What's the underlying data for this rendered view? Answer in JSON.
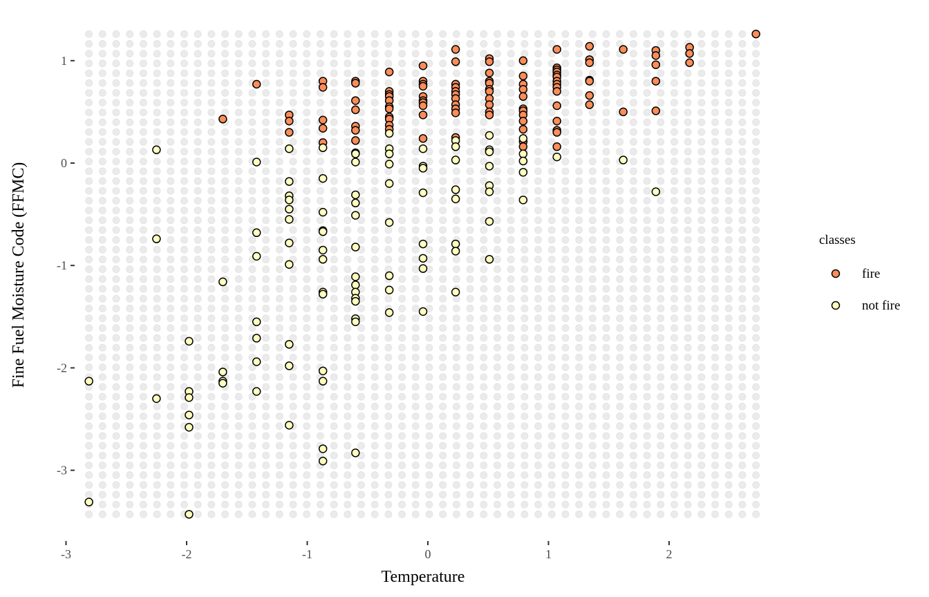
{
  "chart_data": {
    "type": "scatter",
    "title": "",
    "xlabel": "Temperature",
    "ylabel": "Fine Fuel Moisture Code (FFMC)",
    "xlim": [
      -3,
      2.8
    ],
    "ylim": [
      -3.5,
      1.3
    ],
    "xticks": [
      -3,
      -2,
      -1,
      0,
      1,
      2
    ],
    "xtick_labels": [
      "-3",
      "-2",
      "-1",
      "0",
      "1",
      "2"
    ],
    "yticks": [
      1,
      0,
      -1,
      -2,
      -3
    ],
    "ytick_labels": [
      "1",
      "0",
      "-1",
      "-2",
      "-3"
    ],
    "background_grid": {
      "xrange": [
        -2.81,
        2.72
      ],
      "yrange": [
        -3.43,
        1.26
      ],
      "n": 50
    },
    "legend": {
      "title": "classes",
      "position": "right"
    },
    "series": [
      {
        "name": "fire",
        "color": "#FC8D59",
        "points": [
          [
            -1.7,
            0.43
          ],
          [
            -1.42,
            0.77
          ],
          [
            -1.15,
            0.47
          ],
          [
            -1.15,
            0.41
          ],
          [
            -1.15,
            0.3
          ],
          [
            -0.87,
            0.8
          ],
          [
            -0.87,
            0.74
          ],
          [
            -0.87,
            0.42
          ],
          [
            -0.87,
            0.34
          ],
          [
            -0.87,
            0.2
          ],
          [
            -0.6,
            0.8
          ],
          [
            -0.6,
            0.78
          ],
          [
            -0.6,
            0.61
          ],
          [
            -0.6,
            0.52
          ],
          [
            -0.6,
            0.36
          ],
          [
            -0.6,
            0.32
          ],
          [
            -0.6,
            0.22
          ],
          [
            -0.32,
            0.89
          ],
          [
            -0.32,
            0.7
          ],
          [
            -0.32,
            0.67
          ],
          [
            -0.32,
            0.65
          ],
          [
            -0.32,
            0.61
          ],
          [
            -0.32,
            0.55
          ],
          [
            -0.32,
            0.53
          ],
          [
            -0.32,
            0.45
          ],
          [
            -0.32,
            0.43
          ],
          [
            -0.32,
            0.37
          ],
          [
            -0.32,
            0.33
          ],
          [
            -0.04,
            0.95
          ],
          [
            -0.04,
            0.8
          ],
          [
            -0.04,
            0.77
          ],
          [
            -0.04,
            0.75
          ],
          [
            -0.04,
            0.65
          ],
          [
            -0.04,
            0.61
          ],
          [
            -0.04,
            0.59
          ],
          [
            -0.04,
            0.56
          ],
          [
            -0.04,
            0.47
          ],
          [
            -0.04,
            0.24
          ],
          [
            0.23,
            1.11
          ],
          [
            0.23,
            0.99
          ],
          [
            0.23,
            0.77
          ],
          [
            0.23,
            0.74
          ],
          [
            0.23,
            0.7
          ],
          [
            0.23,
            0.67
          ],
          [
            0.23,
            0.63
          ],
          [
            0.23,
            0.57
          ],
          [
            0.23,
            0.53
          ],
          [
            0.23,
            0.49
          ],
          [
            0.23,
            0.25
          ],
          [
            0.51,
            1.02
          ],
          [
            0.51,
            0.99
          ],
          [
            0.51,
            0.88
          ],
          [
            0.51,
            0.8
          ],
          [
            0.51,
            0.78
          ],
          [
            0.51,
            0.72
          ],
          [
            0.51,
            0.7
          ],
          [
            0.51,
            0.63
          ],
          [
            0.51,
            0.57
          ],
          [
            0.51,
            0.5
          ],
          [
            0.51,
            0.47
          ],
          [
            0.79,
            1.0
          ],
          [
            0.79,
            0.85
          ],
          [
            0.79,
            0.77
          ],
          [
            0.79,
            0.72
          ],
          [
            0.79,
            0.65
          ],
          [
            0.79,
            0.53
          ],
          [
            0.79,
            0.51
          ],
          [
            0.79,
            0.47
          ],
          [
            0.79,
            0.41
          ],
          [
            0.79,
            0.33
          ],
          [
            0.79,
            0.21
          ],
          [
            0.79,
            0.16
          ],
          [
            1.07,
            1.11
          ],
          [
            1.07,
            0.93
          ],
          [
            1.07,
            0.91
          ],
          [
            1.07,
            0.89
          ],
          [
            1.07,
            0.86
          ],
          [
            1.07,
            0.84
          ],
          [
            1.07,
            0.8
          ],
          [
            1.07,
            0.77
          ],
          [
            1.07,
            0.74
          ],
          [
            1.07,
            0.7
          ],
          [
            1.07,
            0.56
          ],
          [
            1.07,
            0.41
          ],
          [
            1.07,
            0.32
          ],
          [
            1.07,
            0.3
          ],
          [
            1.07,
            0.16
          ],
          [
            1.34,
            1.14
          ],
          [
            1.34,
            1.01
          ],
          [
            1.34,
            0.98
          ],
          [
            1.34,
            0.81
          ],
          [
            1.34,
            0.8
          ],
          [
            1.34,
            0.66
          ],
          [
            1.34,
            0.57
          ],
          [
            1.62,
            1.11
          ],
          [
            1.62,
            0.5
          ],
          [
            1.89,
            1.1
          ],
          [
            1.89,
            1.05
          ],
          [
            1.89,
            0.96
          ],
          [
            1.89,
            0.8
          ],
          [
            1.89,
            0.51
          ],
          [
            2.17,
            1.13
          ],
          [
            2.17,
            1.07
          ],
          [
            2.17,
            0.98
          ],
          [
            2.72,
            1.26
          ]
        ]
      },
      {
        "name": "not fire",
        "color": "#FFFFBF",
        "points": [
          [
            -2.81,
            -2.13
          ],
          [
            -2.81,
            -3.31
          ],
          [
            -2.25,
            0.13
          ],
          [
            -2.25,
            -0.74
          ],
          [
            -2.25,
            -2.3
          ],
          [
            -1.98,
            -1.74
          ],
          [
            -1.98,
            -2.23
          ],
          [
            -1.98,
            -2.29
          ],
          [
            -1.98,
            -2.46
          ],
          [
            -1.98,
            -2.58
          ],
          [
            -1.98,
            -3.43
          ],
          [
            -1.7,
            -1.16
          ],
          [
            -1.7,
            -2.04
          ],
          [
            -1.7,
            -2.13
          ],
          [
            -1.7,
            -2.15
          ],
          [
            -1.42,
            0.01
          ],
          [
            -1.42,
            -0.68
          ],
          [
            -1.42,
            -0.91
          ],
          [
            -1.42,
            -1.55
          ],
          [
            -1.42,
            -1.71
          ],
          [
            -1.42,
            -1.94
          ],
          [
            -1.42,
            -2.23
          ],
          [
            -1.15,
            0.14
          ],
          [
            -1.15,
            -0.18
          ],
          [
            -1.15,
            -0.32
          ],
          [
            -1.15,
            -0.36
          ],
          [
            -1.15,
            -0.45
          ],
          [
            -1.15,
            -0.55
          ],
          [
            -1.15,
            -0.78
          ],
          [
            -1.15,
            -0.99
          ],
          [
            -1.15,
            -1.77
          ],
          [
            -1.15,
            -1.98
          ],
          [
            -1.15,
            -2.56
          ],
          [
            -0.87,
            0.15
          ],
          [
            -0.87,
            -0.15
          ],
          [
            -0.87,
            -0.48
          ],
          [
            -0.87,
            -0.66
          ],
          [
            -0.87,
            -0.67
          ],
          [
            -0.87,
            -0.85
          ],
          [
            -0.87,
            -0.94
          ],
          [
            -0.87,
            -1.26
          ],
          [
            -0.87,
            -1.28
          ],
          [
            -0.87,
            -2.03
          ],
          [
            -0.87,
            -2.13
          ],
          [
            -0.87,
            -2.79
          ],
          [
            -0.87,
            -2.91
          ],
          [
            -0.6,
            0.1
          ],
          [
            -0.6,
            0.09
          ],
          [
            -0.6,
            0.01
          ],
          [
            -0.6,
            -0.31
          ],
          [
            -0.6,
            -0.39
          ],
          [
            -0.6,
            -0.51
          ],
          [
            -0.6,
            -0.82
          ],
          [
            -0.6,
            -1.11
          ],
          [
            -0.6,
            -1.19
          ],
          [
            -0.6,
            -1.26
          ],
          [
            -0.6,
            -1.32
          ],
          [
            -0.6,
            -1.35
          ],
          [
            -0.6,
            -1.52
          ],
          [
            -0.6,
            -1.55
          ],
          [
            -0.6,
            -2.83
          ],
          [
            -0.32,
            0.29
          ],
          [
            -0.32,
            0.14
          ],
          [
            -0.32,
            0.09
          ],
          [
            -0.32,
            -0.01
          ],
          [
            -0.32,
            -0.2
          ],
          [
            -0.32,
            -0.58
          ],
          [
            -0.32,
            -1.1
          ],
          [
            -0.32,
            -1.24
          ],
          [
            -0.32,
            -1.46
          ],
          [
            -0.04,
            0.14
          ],
          [
            -0.04,
            -0.03
          ],
          [
            -0.04,
            -0.05
          ],
          [
            -0.04,
            -0.29
          ],
          [
            -0.04,
            -0.79
          ],
          [
            -0.04,
            -0.93
          ],
          [
            -0.04,
            -1.03
          ],
          [
            -0.04,
            -1.45
          ],
          [
            0.23,
            0.22
          ],
          [
            0.23,
            0.16
          ],
          [
            0.23,
            0.03
          ],
          [
            0.23,
            -0.26
          ],
          [
            0.23,
            -0.35
          ],
          [
            0.23,
            -0.79
          ],
          [
            0.23,
            -0.86
          ],
          [
            0.23,
            -1.26
          ],
          [
            0.51,
            0.27
          ],
          [
            0.51,
            0.13
          ],
          [
            0.51,
            0.11
          ],
          [
            0.51,
            -0.03
          ],
          [
            0.51,
            -0.22
          ],
          [
            0.51,
            -0.28
          ],
          [
            0.51,
            -0.57
          ],
          [
            0.51,
            -0.94
          ],
          [
            0.79,
            0.24
          ],
          [
            0.79,
            0.09
          ],
          [
            0.79,
            0.02
          ],
          [
            0.79,
            -0.09
          ],
          [
            0.79,
            -0.36
          ],
          [
            1.07,
            0.06
          ],
          [
            1.62,
            0.03
          ],
          [
            1.89,
            -0.28
          ]
        ]
      }
    ]
  }
}
